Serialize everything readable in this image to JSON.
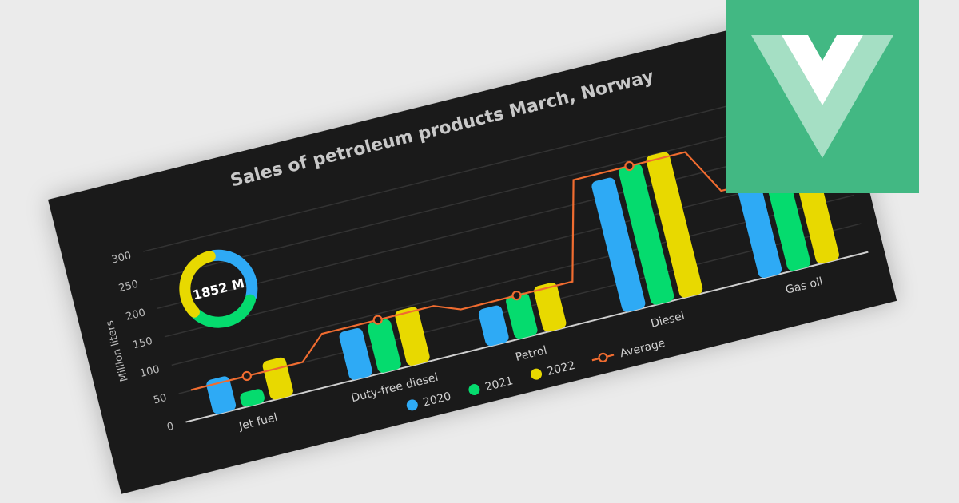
{
  "chart_data": {
    "type": "bar",
    "title": "Sales of petroleum products March, Norway",
    "ylabel": "Million liters",
    "xlabel": "",
    "ylim": [
      0,
      300
    ],
    "yticks": [
      0,
      50,
      100,
      150,
      200,
      250,
      300
    ],
    "grid": true,
    "categories": [
      "Jet fuel",
      "Duty-free diesel",
      "Petrol",
      "Diesel",
      "Gas oil"
    ],
    "series": [
      {
        "name": "2020",
        "color": "#2eaaf5",
        "values": [
          60,
          85,
          65,
          230,
          162
        ]
      },
      {
        "name": "2021",
        "color": "#05db6e",
        "values": [
          25,
          88,
          75,
          242,
          172
        ]
      },
      {
        "name": "2022",
        "color": "#e8d900",
        "values": [
          68,
          97,
          80,
          250,
          153
        ]
      }
    ],
    "average": {
      "name": "Average",
      "color": "#f06c30",
      "type": "step-line",
      "values": [
        51,
        90,
        73,
        241,
        162
      ]
    },
    "donut": {
      "label": "1852 M",
      "slices": [
        {
          "name": "2020",
          "value": 602
        },
        {
          "name": "2021",
          "value": 602
        },
        {
          "name": "2022",
          "value": 648
        }
      ]
    },
    "legend_placement": "bottom"
  },
  "colors": {
    "background": "#1a1a1a",
    "page": "#ebebeb",
    "logo": "#42b883"
  },
  "logo": {
    "icon": "vue-logo-icon"
  }
}
